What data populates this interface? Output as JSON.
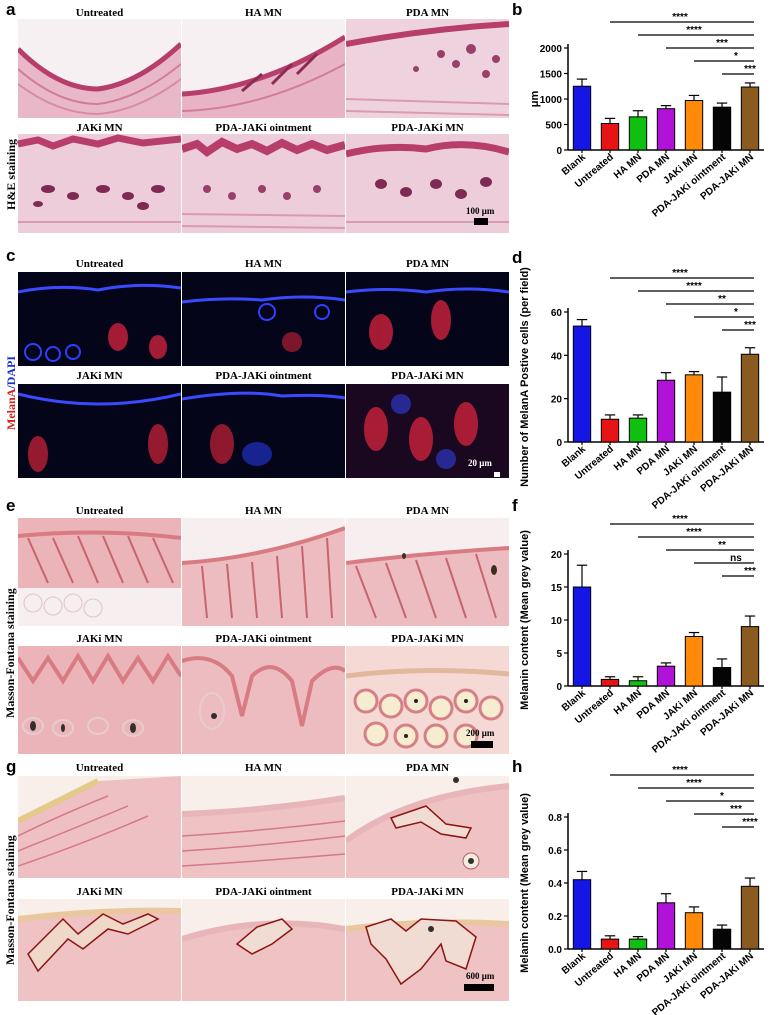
{
  "panels": {
    "a": {
      "label": "a",
      "side_label": "H&E staining",
      "scale_bar": "100 μm",
      "titles": [
        "Untreated",
        "HA MN",
        "PDA MN",
        "JAKi MN",
        "PDA-JAKi ointment",
        "PDA-JAKi MN"
      ]
    },
    "c": {
      "label": "c",
      "side_label_red": "MelanA",
      "side_label_blue": "/DAPI",
      "scale_bar": "20 μm",
      "titles": [
        "Untreated",
        "HA MN",
        "PDA MN",
        "JAKi MN",
        "PDA-JAKi ointment",
        "PDA-JAKi MN"
      ]
    },
    "e": {
      "label": "e",
      "side_label": "Masson-Fontana staining",
      "scale_bar": "200 μm",
      "titles": [
        "Untreated",
        "HA MN",
        "PDA MN",
        "JAKi MN",
        "PDA-JAKi ointment",
        "PDA-JAKi MN"
      ]
    },
    "g": {
      "label": "g",
      "side_label": "Masson-Fontana staining",
      "scale_bar": "600 μm",
      "titles": [
        "Untreated",
        "HA MN",
        "PDA MN",
        "JAKi MN",
        "PDA-JAKi ointment",
        "PDA-JAKi MN"
      ]
    }
  },
  "colors": {
    "Blank": "#1515e6",
    "Untreated": "#e61414",
    "HA MN": "#10c010",
    "PDA MN": "#b012d8",
    "JAKi MN": "#ff8a0a",
    "PDA-JAKi ointment": "#050505",
    "PDA-JAKi MN": "#8b5a1e"
  },
  "chart_data": [
    {
      "id": "b",
      "label": "b",
      "type": "bar",
      "categories": [
        "Blank",
        "Untreated",
        "HA MN",
        "PDA MN",
        "JAKi MN",
        "PDA-JAKi ointment",
        "PDA-JAKi MN"
      ],
      "values": [
        1250,
        520,
        650,
        810,
        970,
        840,
        1235
      ],
      "errors": [
        140,
        100,
        120,
        60,
        100,
        80,
        80
      ],
      "ylabel": "μm",
      "ylim": [
        0,
        2000
      ],
      "yticks": [
        "0",
        "500",
        "1000",
        "1500",
        "2000"
      ],
      "significance": [
        {
          "from": "Untreated",
          "label": "****"
        },
        {
          "from": "HA MN",
          "label": "****"
        },
        {
          "from": "PDA MN",
          "label": "***"
        },
        {
          "from": "JAKi MN",
          "label": "*"
        },
        {
          "from": "PDA-JAKi ointment",
          "label": "***"
        }
      ]
    },
    {
      "id": "d",
      "label": "d",
      "type": "bar",
      "categories": [
        "Blank",
        "Untreated",
        "HA MN",
        "PDA MN",
        "JAKi MN",
        "PDA-JAKi ointment",
        "PDA-JAKi MN"
      ],
      "values": [
        53.5,
        10.5,
        11,
        28.5,
        31,
        23,
        40.5
      ],
      "errors": [
        3,
        2,
        1.5,
        3.5,
        1.5,
        7,
        3
      ],
      "ylabel": "Number of MelanA Postive cells (per field)",
      "ylim": [
        0,
        60
      ],
      "yticks": [
        "0",
        "20",
        "40",
        "60"
      ],
      "significance": [
        {
          "from": "Untreated",
          "label": "****"
        },
        {
          "from": "HA MN",
          "label": "****"
        },
        {
          "from": "PDA MN",
          "label": "**"
        },
        {
          "from": "JAKi MN",
          "label": "*"
        },
        {
          "from": "PDA-JAKi ointment",
          "label": "***"
        }
      ]
    },
    {
      "id": "f",
      "label": "f",
      "type": "bar",
      "categories": [
        "Blank",
        "Untreated",
        "HA MN",
        "PDA MN",
        "JAKi MN",
        "PDA-JAKi ointment",
        "PDA-JAKi MN"
      ],
      "values": [
        15,
        1.0,
        0.8,
        3.0,
        7.5,
        2.8,
        9.0
      ],
      "errors": [
        3.3,
        0.4,
        0.6,
        0.5,
        0.6,
        1.3,
        1.6
      ],
      "ylabel": "Melanin content (Mean grey value)",
      "ylim": [
        0,
        20
      ],
      "yticks": [
        "0",
        "5",
        "10",
        "15",
        "20"
      ],
      "significance": [
        {
          "from": "Untreated",
          "label": "****"
        },
        {
          "from": "HA MN",
          "label": "****"
        },
        {
          "from": "PDA MN",
          "label": "**"
        },
        {
          "from": "JAKi MN",
          "label": "ns"
        },
        {
          "from": "PDA-JAKi ointment",
          "label": "***"
        }
      ]
    },
    {
      "id": "h",
      "label": "h",
      "type": "bar",
      "categories": [
        "Blank",
        "Untreated",
        "HA MN",
        "PDA MN",
        "JAKi MN",
        "PDA-JAKi ointment",
        "PDA-JAKi MN"
      ],
      "values": [
        0.42,
        0.06,
        0.06,
        0.28,
        0.22,
        0.12,
        0.38
      ],
      "errors": [
        0.05,
        0.02,
        0.015,
        0.055,
        0.035,
        0.025,
        0.05
      ],
      "ylabel": "Melanin content (Mean grey value)",
      "ylim": [
        0,
        0.8
      ],
      "yticks": [
        "0.0",
        "0.2",
        "0.4",
        "0.6",
        "0.8"
      ],
      "significance": [
        {
          "from": "Untreated",
          "label": "****"
        },
        {
          "from": "HA MN",
          "label": "****"
        },
        {
          "from": "PDA MN",
          "label": "*"
        },
        {
          "from": "JAKi MN",
          "label": "***"
        },
        {
          "from": "PDA-JAKi ointment",
          "label": "****"
        }
      ]
    }
  ]
}
